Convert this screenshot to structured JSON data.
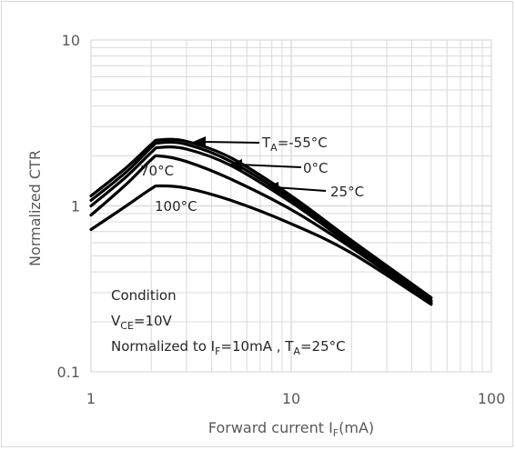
{
  "chart_data": {
    "type": "line",
    "title": "",
    "xlabel": {
      "main": "Forward current I",
      "sub": "F",
      "unit": "(mA)"
    },
    "ylabel": "Normalized CTR",
    "xscale": "log",
    "yscale": "log",
    "xlim": [
      1,
      100
    ],
    "ylim": [
      0.1,
      10
    ],
    "x_ticks": [
      "1",
      "10",
      "100"
    ],
    "y_ticks": [
      "0.1",
      "1",
      "10"
    ],
    "grid": true,
    "series": [
      {
        "name": "TA=-55°C",
        "x": [
          1,
          1.5,
          2,
          2.2,
          3,
          5,
          10,
          20,
          50
        ],
        "y": [
          1.15,
          1.7,
          2.35,
          2.5,
          2.45,
          1.95,
          1.15,
          0.62,
          0.28
        ]
      },
      {
        "name": "0°C",
        "x": [
          1,
          1.5,
          2,
          2.2,
          3,
          5,
          10,
          20,
          50
        ],
        "y": [
          1.08,
          1.6,
          2.25,
          2.4,
          2.35,
          1.85,
          1.1,
          0.6,
          0.27
        ]
      },
      {
        "name": "25°C",
        "x": [
          1,
          1.5,
          2,
          2.2,
          3,
          5,
          10,
          20,
          50
        ],
        "y": [
          1.0,
          1.5,
          2.1,
          2.25,
          2.2,
          1.75,
          1.05,
          0.58,
          0.265
        ]
      },
      {
        "name": "70°C",
        "x": [
          1,
          1.5,
          2,
          2.2,
          3,
          5,
          10,
          20,
          50
        ],
        "y": [
          0.88,
          1.35,
          1.9,
          2.0,
          1.85,
          1.45,
          0.95,
          0.56,
          0.26
        ]
      },
      {
        "name": "100°C",
        "x": [
          1,
          1.5,
          2,
          2.2,
          3,
          5,
          10,
          20,
          50
        ],
        "y": [
          0.72,
          1.0,
          1.27,
          1.32,
          1.28,
          1.08,
          0.78,
          0.52,
          0.255
        ]
      }
    ],
    "annotations": {
      "ta_label": {
        "prefix": "T",
        "sub": "A",
        "text": "=-55°C"
      },
      "label_0": "0°C",
      "label_25": "25°C",
      "label_70": "70°C",
      "label_100": "100°C",
      "condition_title": "Condition",
      "vce": {
        "prefix": "V",
        "sub": "CE",
        "text": "=10V"
      },
      "normalized": {
        "part1": "Normalized to I",
        "sub1": "F",
        "part2": "=10mA , T",
        "sub2": "A",
        "part3": "=25°C"
      }
    },
    "colors": {
      "line": "#000000",
      "grid": "#d9d9d9",
      "text": "#595959"
    }
  }
}
